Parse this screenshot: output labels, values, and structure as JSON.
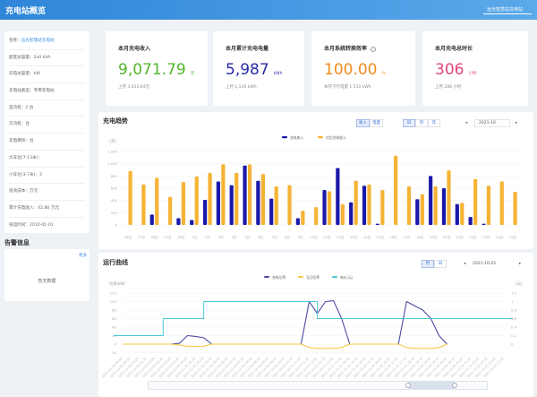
{
  "header": {
    "title": "充电站概览",
    "station_select": "远光智慧站充电站"
  },
  "station_info": [
    {
      "label": "名称：",
      "value": "远光智慧站充电站",
      "link": true
    },
    {
      "label": "配变总容量：",
      "value": "2x0 kVA"
    },
    {
      "label": "充电总容量：",
      "value": "kW"
    },
    {
      "label": "充电站类型：",
      "value": "专用充电站"
    },
    {
      "label": "直流桩：",
      "value": "2 台"
    },
    {
      "label": "交流桩：",
      "value": "台"
    },
    {
      "label": "充电模块：",
      "value": "台"
    },
    {
      "label": "大车位(7-13米)：",
      "value": ""
    },
    {
      "label": "小车位(3-7米)：",
      "value": "2"
    },
    {
      "label": "投资成本：",
      "value": "万元"
    },
    {
      "label": "累计充电收入：",
      "value": "42.86 万元"
    },
    {
      "label": "投运时间：",
      "value": "2010-01-01"
    }
  ],
  "alarm": {
    "title": "告警信息",
    "more": "更多",
    "empty": "暂无数据"
  },
  "kpis": [
    {
      "label": "本月充电收入",
      "value": "9,071.79",
      "unit": "元",
      "sub": "上月 3,453.64元",
      "color": "#52b52a"
    },
    {
      "label": "本月累计充电电量",
      "value": "5,987",
      "unit": "kWh",
      "sub": "上月 1,530 kWh",
      "color": "#2a2aa8"
    },
    {
      "label": "本月系统转换效率",
      "value": "100.00",
      "unit": "%",
      "sub": "本月下行电量 1,510 kWh",
      "color": "#f08a1c",
      "info": "i"
    },
    {
      "label": "本月充电总时长",
      "value": "306",
      "unit": "小时",
      "sub": "上月 288 小时",
      "color": "#e0457b"
    }
  ],
  "trend": {
    "title": "充电趋势",
    "toggle1": [
      "收入",
      "电量"
    ],
    "toggle2": [
      "日",
      "月",
      "年"
    ],
    "period": "2021-10",
    "prev": "◂",
    "next": "▸"
  },
  "curve": {
    "title": "运行曲线",
    "toggle": [
      "时",
      "日"
    ],
    "period": "2021-10-25",
    "prev": "◂",
    "next": "▸"
  },
  "chart_data": [
    {
      "type": "bar",
      "ylabel": "(元)",
      "ylim": [
        0,
        1200
      ],
      "yticks": [
        0,
        200,
        400,
        600,
        800,
        1000,
        1200
      ],
      "legend": "top",
      "categories": [
        "26日",
        "27日",
        "28日",
        "29日",
        "30日",
        "1日",
        "2日",
        "3日",
        "4日",
        "5日",
        "6日",
        "7日",
        "8日",
        "9日",
        "10日",
        "11日",
        "12日",
        "13日",
        "14日",
        "15日",
        "16日",
        "17日",
        "18日",
        "19日",
        "20日",
        "21日",
        "22日",
        "23日",
        "24日",
        "25日"
      ],
      "series": [
        {
          "name": "充电收入",
          "color": "#1a18a8",
          "values": [
            0,
            0,
            170,
            0,
            110,
            80,
            410,
            710,
            650,
            970,
            720,
            430,
            0,
            110,
            0,
            570,
            930,
            370,
            640,
            20,
            0,
            0,
            420,
            800,
            600,
            340,
            130,
            20,
            0,
            0
          ]
        },
        {
          "name": "对比充电收入",
          "color": "#f5b335",
          "values": [
            880,
            660,
            770,
            460,
            700,
            790,
            850,
            990,
            850,
            990,
            830,
            630,
            650,
            230,
            290,
            550,
            340,
            720,
            660,
            570,
            1130,
            630,
            500,
            630,
            890,
            360,
            750,
            640,
            710,
            540
          ]
        }
      ]
    },
    {
      "type": "line",
      "ylabel": "功率(kW)",
      "y2label": "(元)",
      "ylim": [
        -20,
        120
      ],
      "y2lim": [
        0,
        1.2
      ],
      "yticks": [
        -20,
        0,
        20,
        40,
        60,
        80,
        100,
        120
      ],
      "y2ticks": [
        0,
        0.2,
        0.4,
        0.6,
        0.8,
        1,
        1.2
      ],
      "legend": "top",
      "grid": true,
      "series": [
        {
          "name": "充电功率",
          "color": "#4b4aa0",
          "axis": "left",
          "values": [
            0,
            0,
            0,
            0,
            0,
            0,
            0,
            2,
            20,
            18,
            15,
            0,
            0,
            0,
            0,
            0,
            0,
            0,
            0,
            0,
            0,
            0,
            0,
            100,
            72,
            100,
            102,
            60,
            0,
            0,
            0,
            0,
            0,
            0,
            0,
            100,
            90,
            80,
            60,
            20,
            0
          ]
        },
        {
          "name": "无功功率",
          "color": "#f5c542",
          "axis": "left",
          "values": [
            0,
            0,
            0,
            0,
            0,
            0,
            0,
            -2,
            -5,
            -5,
            -5,
            0,
            0,
            0,
            0,
            0,
            0,
            0,
            0,
            0,
            0,
            0,
            0,
            -8,
            -10,
            -10,
            -10,
            -8,
            0,
            0,
            0,
            0,
            0,
            0,
            0,
            -8,
            -10,
            -10,
            -10,
            -8,
            0
          ]
        },
        {
          "name": "电价(元)",
          "color": "#49c8d8",
          "axis": "right",
          "values": [
            0.2,
            0.2,
            0.2,
            0.2,
            0.2,
            0.6,
            0.6,
            0.6,
            0.6,
            0.6,
            1,
            1,
            1,
            1,
            1,
            1,
            1,
            1,
            1,
            1,
            1,
            1,
            1,
            1,
            0.6,
            0.6,
            0.6,
            0.6,
            0.6,
            0.6,
            0.6,
            0.6,
            0.6,
            0.6,
            0.6,
            0.6,
            0.6,
            0.6,
            0.6,
            0.6,
            0.6,
            0.6,
            0.6,
            0.6,
            0.6,
            0.6,
            0.6,
            0.6
          ]
        }
      ]
    }
  ]
}
